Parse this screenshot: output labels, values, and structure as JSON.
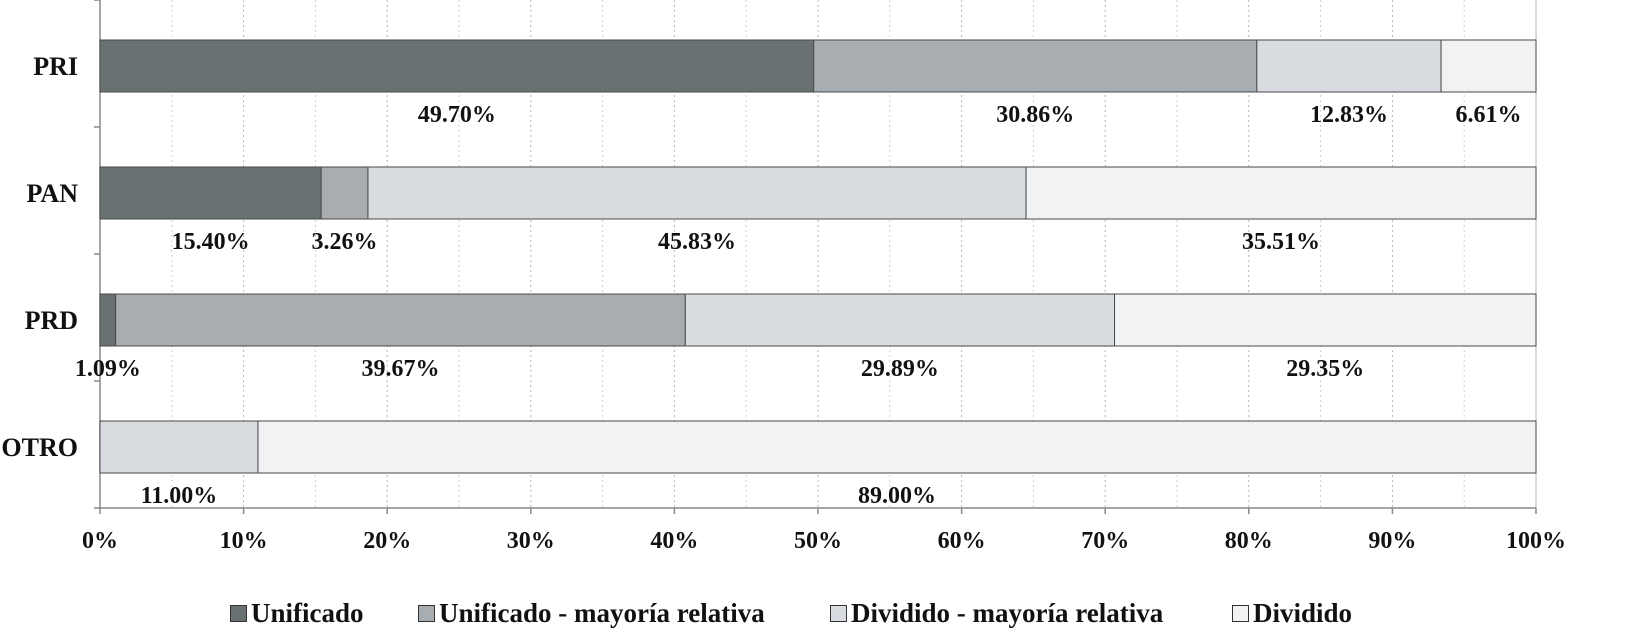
{
  "chart_data": {
    "type": "bar",
    "orientation": "horizontal",
    "stacked": "percent",
    "categories": [
      "PRI",
      "PAN",
      "PRD",
      "OTRO"
    ],
    "series": [
      {
        "name": "Unificado",
        "values": [
          49.7,
          15.4,
          1.09,
          0
        ],
        "labels": [
          "49.70%",
          "15.40%",
          "1.09%",
          ""
        ],
        "color": "#6a7173"
      },
      {
        "name": "Unificado - mayoría relativa",
        "values": [
          30.86,
          3.26,
          39.67,
          0
        ],
        "labels": [
          "30.86%",
          "3.26%",
          "39.67%",
          ""
        ],
        "color": "#a8adb1"
      },
      {
        "name": "Dividido - mayoría relativa",
        "values": [
          12.83,
          45.83,
          29.89,
          11.0
        ],
        "labels": [
          "12.83%",
          "45.83%",
          "29.89%",
          "11.00%"
        ],
        "color": "#d8dbe0"
      },
      {
        "name": "Dividido",
        "values": [
          6.61,
          35.51,
          29.35,
          89.0
        ],
        "labels": [
          "6.61%",
          "35.51%",
          "29.35%",
          "89.00%"
        ],
        "color": "#f1f2f4"
      }
    ],
    "x_ticks": [
      "0%",
      "10%",
      "20%",
      "30%",
      "40%",
      "50%",
      "60%",
      "70%",
      "80%",
      "90%",
      "100%"
    ],
    "xlim": [
      0,
      100
    ],
    "grid": "vertical dotted",
    "legend": "bottom"
  }
}
